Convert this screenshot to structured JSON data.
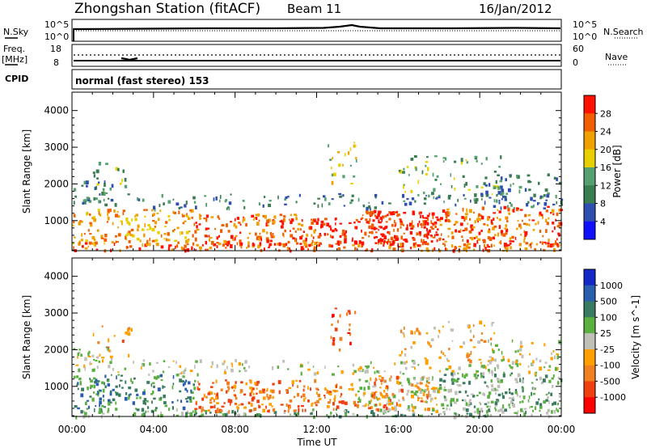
{
  "header": {
    "station": "Zhongshan Station (fitACF)",
    "beam": "Beam 11",
    "date": "16/Jan/2012"
  },
  "status_panel": {
    "nsky_label": "N.Sky",
    "nsky_top": "10^5",
    "nsky_bottom": "10^0",
    "nsearch_label": "N.Search",
    "nsearch_top": "10^5",
    "nsearch_bottom": "10^0",
    "freq_label": "Freq.",
    "freq_unit": "[MHz]",
    "freq_top": "18",
    "freq_bottom": "8",
    "nave_label": "Nave",
    "nave_top": "60",
    "nave_bottom": "0",
    "cpid_label": "CPID",
    "cpid_value": "normal (fast stereo) 153"
  },
  "colors": {
    "power_scale": [
      "#1010ff",
      "#2e4fb0",
      "#3a7d50",
      "#55a070",
      "#e8d000",
      "#f0a000",
      "#f06000",
      "#ff1000"
    ],
    "velocity_scale": [
      "#1428c8",
      "#2a5fb0",
      "#3a7a60",
      "#5ab040",
      "#c0c0b8",
      "#ffa000",
      "#f08020",
      "#f04010",
      "#ff0000"
    ]
  },
  "chart_data": [
    {
      "type": "heatmap",
      "title": "Power",
      "ylabel": "Slant Range [km]",
      "xlabel": "Time UT",
      "ylim": [
        180,
        4500
      ],
      "y_ticks": [
        "1000",
        "2000",
        "3000",
        "4000"
      ],
      "x_ticks": [
        "00:00",
        "04:00",
        "08:00",
        "12:00",
        "16:00",
        "20:00",
        "00:00"
      ],
      "colorbar_label": "Power [dB]",
      "colorbar_ticks": [
        "4",
        "8",
        "12",
        "16",
        "20",
        "24",
        "28"
      ],
      "colorbar_range": [
        0,
        30
      ]
    },
    {
      "type": "heatmap",
      "title": "Velocity",
      "ylabel": "Slant Range [km]",
      "xlabel": "Time UT",
      "ylim": [
        180,
        4500
      ],
      "y_ticks": [
        "1000",
        "2000",
        "3000",
        "4000"
      ],
      "x_ticks": [
        "00:00",
        "04:00",
        "08:00",
        "12:00",
        "16:00",
        "20:00",
        "00:00"
      ],
      "colorbar_label": "Velocity [m s^-1]",
      "colorbar_ticks": [
        "1000",
        "500",
        "100",
        "25",
        "-25",
        "-100",
        "-500",
        "-1000"
      ]
    }
  ]
}
